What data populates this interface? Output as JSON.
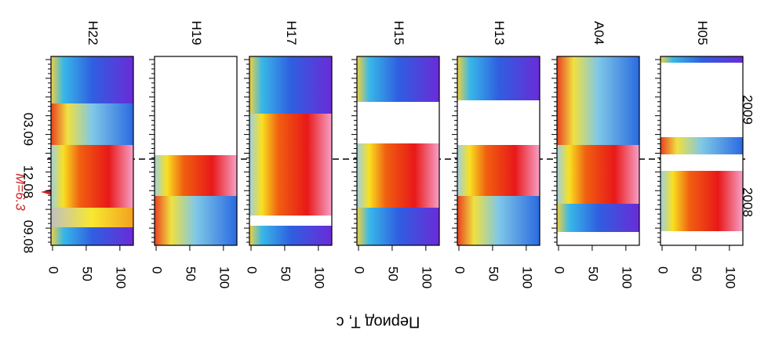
{
  "chart_data": {
    "type": "heatmap",
    "panels": [
      "H22",
      "H19",
      "H17",
      "H15",
      "H13",
      "A04",
      "H05"
    ],
    "xlim": [
      0,
      120
    ],
    "xticks": [
      0,
      50,
      100
    ],
    "time_labels": [
      "09.08",
      "12.08",
      "03.09"
    ],
    "year_labels": [
      "2008",
      "2009"
    ],
    "annotation": "M=6.3",
    "xlabel": "Период T, с"
  }
}
